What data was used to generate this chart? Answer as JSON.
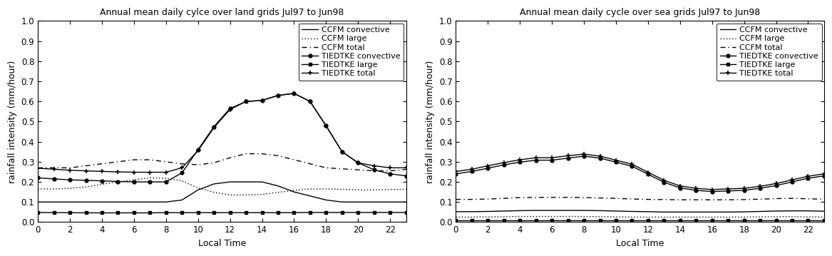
{
  "title_left": "Annual mean daily cylce over land grids Jul97 to Jun98",
  "title_right": "Annual mean daily cycle over sea grids Jul97 to Jun98",
  "xlabel": "Local Time",
  "ylabel": "rainfall intensity (mm/hour)",
  "x": [
    0,
    1,
    2,
    3,
    4,
    5,
    6,
    7,
    8,
    9,
    10,
    11,
    12,
    13,
    14,
    15,
    16,
    17,
    18,
    19,
    20,
    21,
    22,
    23
  ],
  "ylim": [
    0,
    1.0
  ],
  "yticks": [
    0,
    0.1,
    0.2,
    0.3,
    0.4,
    0.5,
    0.6,
    0.7,
    0.8,
    0.9,
    1.0
  ],
  "xticks": [
    0,
    2,
    4,
    6,
    8,
    10,
    12,
    14,
    16,
    18,
    20,
    22
  ],
  "land": {
    "ccfm_convective": [
      0.1,
      0.1,
      0.1,
      0.1,
      0.1,
      0.1,
      0.1,
      0.1,
      0.1,
      0.11,
      0.16,
      0.19,
      0.2,
      0.2,
      0.2,
      0.18,
      0.15,
      0.13,
      0.11,
      0.1,
      0.1,
      0.1,
      0.1,
      0.1
    ],
    "ccfm_large": [
      0.165,
      0.165,
      0.168,
      0.175,
      0.188,
      0.2,
      0.21,
      0.22,
      0.218,
      0.205,
      0.17,
      0.148,
      0.135,
      0.135,
      0.138,
      0.148,
      0.158,
      0.165,
      0.165,
      0.163,
      0.16,
      0.16,
      0.162,
      0.163
    ],
    "ccfm_total": [
      0.27,
      0.27,
      0.27,
      0.28,
      0.29,
      0.3,
      0.31,
      0.31,
      0.3,
      0.29,
      0.285,
      0.295,
      0.32,
      0.34,
      0.34,
      0.33,
      0.31,
      0.29,
      0.27,
      0.265,
      0.26,
      0.255,
      0.255,
      0.262
    ],
    "tiedtke_convective": [
      0.22,
      0.215,
      0.21,
      0.208,
      0.205,
      0.202,
      0.2,
      0.2,
      0.2,
      0.245,
      0.36,
      0.475,
      0.565,
      0.6,
      0.605,
      0.63,
      0.64,
      0.6,
      0.48,
      0.35,
      0.295,
      0.26,
      0.24,
      0.23
    ],
    "tiedtke_large": [
      0.048,
      0.047,
      0.047,
      0.046,
      0.046,
      0.046,
      0.046,
      0.046,
      0.047,
      0.047,
      0.047,
      0.047,
      0.047,
      0.047,
      0.047,
      0.047,
      0.047,
      0.048,
      0.048,
      0.048,
      0.048,
      0.048,
      0.048,
      0.048
    ],
    "tiedtke_total": [
      0.268,
      0.263,
      0.258,
      0.255,
      0.252,
      0.25,
      0.248,
      0.248,
      0.248,
      0.27,
      0.355,
      0.47,
      0.56,
      0.6,
      0.605,
      0.63,
      0.64,
      0.6,
      0.478,
      0.35,
      0.295,
      0.28,
      0.27,
      0.27
    ]
  },
  "sea": {
    "ccfm_convective": [
      0.052,
      0.052,
      0.053,
      0.055,
      0.057,
      0.058,
      0.058,
      0.058,
      0.058,
      0.057,
      0.055,
      0.053,
      0.052,
      0.05,
      0.05,
      0.05,
      0.05,
      0.05,
      0.051,
      0.053,
      0.055,
      0.056,
      0.056,
      0.054
    ],
    "ccfm_large": [
      0.025,
      0.025,
      0.026,
      0.027,
      0.028,
      0.028,
      0.028,
      0.028,
      0.028,
      0.027,
      0.026,
      0.025,
      0.025,
      0.025,
      0.025,
      0.025,
      0.025,
      0.025,
      0.025,
      0.026,
      0.027,
      0.027,
      0.026,
      0.025
    ],
    "ccfm_total": [
      0.113,
      0.113,
      0.115,
      0.118,
      0.122,
      0.123,
      0.123,
      0.123,
      0.122,
      0.12,
      0.118,
      0.115,
      0.113,
      0.112,
      0.111,
      0.111,
      0.111,
      0.111,
      0.112,
      0.114,
      0.117,
      0.118,
      0.116,
      0.114
    ],
    "tiedtke_convective": [
      0.24,
      0.252,
      0.268,
      0.285,
      0.298,
      0.308,
      0.308,
      0.318,
      0.328,
      0.318,
      0.298,
      0.278,
      0.238,
      0.198,
      0.17,
      0.158,
      0.152,
      0.155,
      0.158,
      0.168,
      0.182,
      0.2,
      0.218,
      0.23
    ],
    "tiedtke_large": [
      0.01,
      0.01,
      0.01,
      0.01,
      0.01,
      0.01,
      0.01,
      0.01,
      0.01,
      0.01,
      0.01,
      0.01,
      0.01,
      0.01,
      0.01,
      0.01,
      0.01,
      0.01,
      0.01,
      0.01,
      0.01,
      0.01,
      0.01,
      0.01
    ],
    "tiedtke_total": [
      0.252,
      0.263,
      0.28,
      0.296,
      0.31,
      0.32,
      0.32,
      0.33,
      0.338,
      0.328,
      0.308,
      0.288,
      0.248,
      0.208,
      0.18,
      0.168,
      0.162,
      0.165,
      0.168,
      0.178,
      0.192,
      0.21,
      0.228,
      0.24
    ]
  },
  "bg_color": "#ffffff",
  "line_color": "#000000",
  "title_fontsize": 9,
  "label_fontsize": 9,
  "tick_fontsize": 8.5,
  "legend_fontsize": 8
}
